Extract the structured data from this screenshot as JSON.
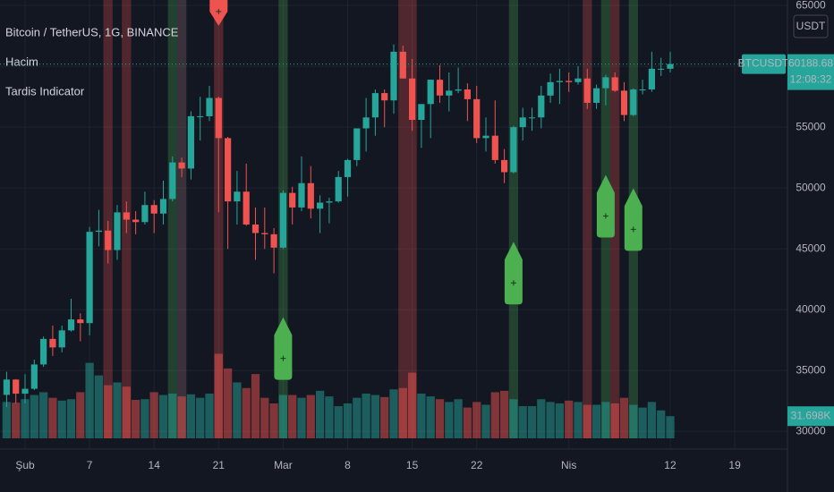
{
  "chart_data": {
    "type": "candlestick",
    "title": "Bitcoin / TetherUS, 1G, BINANCE",
    "indicators": [
      "Hacim",
      "Tardis Indicator"
    ],
    "currency": "USDT",
    "x": [
      -2,
      -1,
      0,
      1,
      2,
      3,
      4,
      5,
      6,
      7,
      8,
      9,
      10,
      11,
      12,
      13,
      14,
      15,
      16,
      17,
      18,
      19,
      20,
      21,
      22,
      23,
      24,
      25,
      26,
      27,
      28,
      29,
      30,
      31,
      32,
      33,
      34,
      35,
      36,
      37,
      38,
      39,
      40,
      41,
      42,
      43,
      44,
      45,
      46,
      47,
      48,
      49,
      50,
      51,
      52,
      53,
      54,
      55,
      56,
      57,
      58,
      59,
      60,
      61,
      62,
      63,
      64,
      65,
      66,
      67,
      68,
      69,
      70
    ],
    "open": [
      33000,
      34260,
      33100,
      33500,
      35500,
      37600,
      36900,
      38300,
      39200,
      38900,
      46400,
      46500,
      44900,
      48000,
      47400,
      47200,
      48600,
      47900,
      49100,
      52100,
      51600,
      55900,
      55900,
      57400,
      54100,
      48900,
      49700,
      47000,
      46300,
      46200,
      45100,
      49600,
      48400,
      50400,
      48300,
      48800,
      48900,
      50900,
      52300,
      54900,
      55800,
      57800,
      57200,
      61200,
      59000,
      55600,
      56900,
      58900,
      57600,
      58000,
      58100,
      57300,
      54100,
      54300,
      52300,
      51300,
      55000,
      55800,
      55800,
      57600,
      58700,
      58800,
      58700,
      59000,
      57000,
      58200,
      59100,
      58000,
      56000,
      58100,
      58100,
      59800,
      59800
    ],
    "high": [
      34900,
      34300,
      34700,
      35900,
      37800,
      38700,
      38700,
      40900,
      39700,
      46800,
      48200,
      47300,
      48600,
      48900,
      48100,
      49700,
      49000,
      50600,
      52600,
      52500,
      56300,
      57500,
      58400,
      57500,
      54200,
      51400,
      52000,
      48400,
      48400,
      46700,
      49800,
      50100,
      52600,
      51800,
      49400,
      49200,
      51400,
      52400,
      54900,
      57400,
      58100,
      58100,
      61800,
      61700,
      60600,
      56900,
      58900,
      60100,
      59500,
      59900,
      58600,
      58400,
      55800,
      57200,
      53200,
      55100,
      56600,
      56600,
      58400,
      59400,
      59800,
      59500,
      60000,
      59800,
      58500,
      59300,
      59500,
      58700,
      58200,
      58900,
      61200,
      60700,
      61200
    ],
    "low": [
      32000,
      32300,
      32300,
      33400,
      35300,
      36200,
      36500,
      38200,
      37400,
      37900,
      45200,
      43800,
      44100,
      46300,
      46200,
      47000,
      46300,
      47000,
      48900,
      50900,
      50700,
      53900,
      55500,
      48000,
      45000,
      47000,
      46900,
      44100,
      45000,
      43000,
      45000,
      47000,
      48100,
      47500,
      46300,
      47100,
      48800,
      49300,
      51800,
      53000,
      54300,
      55000,
      56100,
      59000,
      54700,
      53300,
      54100,
      57000,
      56300,
      57800,
      55500,
      53700,
      53000,
      52000,
      50400,
      51200,
      53900,
      54700,
      54900,
      57000,
      56900,
      57900,
      58500,
      56500,
      56500,
      56800,
      57900,
      55500,
      55900,
      57700,
      57900,
      59200,
      59500
    ],
    "close": [
      34260,
      33100,
      33500,
      35500,
      37600,
      36900,
      38300,
      39200,
      38900,
      46400,
      46500,
      44900,
      48000,
      47400,
      47200,
      48600,
      47900,
      49100,
      52100,
      51600,
      55900,
      55900,
      57400,
      54100,
      48900,
      49700,
      47000,
      46300,
      46200,
      45100,
      49600,
      48400,
      50400,
      48300,
      48800,
      48900,
      50900,
      52300,
      54900,
      55800,
      57800,
      57200,
      61200,
      59000,
      55600,
      56900,
      58900,
      57600,
      58000,
      58100,
      57300,
      54100,
      54300,
      52300,
      51300,
      55000,
      55800,
      55800,
      57600,
      58700,
      58800,
      58700,
      59000,
      57000,
      58200,
      59100,
      58000,
      56000,
      58100,
      58100,
      59800,
      59800,
      60190
    ],
    "volume": [
      52000,
      51000,
      56000,
      62000,
      66000,
      58000,
      54000,
      56000,
      66000,
      108000,
      90000,
      76000,
      80000,
      74000,
      55000,
      56000,
      66000,
      62000,
      64000,
      60000,
      63000,
      58000,
      64000,
      121000,
      100000,
      80000,
      72000,
      92000,
      58000,
      50000,
      62000,
      62000,
      58000,
      62000,
      68000,
      60000,
      46000,
      50000,
      58000,
      64000,
      62000,
      59000,
      70000,
      72000,
      94000,
      64000,
      60000,
      56000,
      52000,
      56000,
      44000,
      52000,
      48000,
      66000,
      68000,
      56000,
      46000,
      46000,
      56000,
      52000,
      50000,
      54000,
      52000,
      48000,
      48000,
      52000,
      50000,
      58000,
      48000,
      44000,
      52000,
      40000,
      31698
    ],
    "up_color": "#26a69a",
    "down_color": "#ef5350",
    "xlim": [
      -2.72,
      82.72
    ],
    "xticks": [
      {
        "value": 0,
        "label": "Şub"
      },
      7,
      14,
      21,
      {
        "value": 28,
        "label": "Mar"
      },
      {
        "value": 35,
        "label": "8"
      },
      {
        "value": 42,
        "label": "15"
      },
      {
        "value": 49,
        "label": "22"
      },
      {
        "value": 59,
        "label": "Nis"
      },
      {
        "value": 70,
        "label": "12"
      },
      {
        "value": 77,
        "label": "19"
      }
    ],
    "ylim": [
      29430,
      65450
    ],
    "yticks": [
      30000,
      35000,
      40000,
      45000,
      50000,
      55000,
      60000,
      65000
    ],
    "vlim": [
      0,
      160000
    ],
    "grid": true,
    "last_price": {
      "symbol": "BTCUSDT",
      "value": 60188.68,
      "countdown": "12:08:32"
    },
    "last_volume": {
      "value": 31698,
      "label": "31.698K"
    },
    "bands": [
      {
        "x": 9,
        "color": "#ef5350"
      },
      {
        "x": 11,
        "color": "#ef5350"
      },
      {
        "x": 16,
        "color": "#4caf50"
      },
      {
        "x": 17,
        "color": "#9e7a7a"
      },
      {
        "x": 21,
        "color": "#ef5350"
      },
      {
        "x": 28,
        "color": "#4caf50"
      },
      {
        "x": 41,
        "color": "#ef5350"
      },
      {
        "x": 42,
        "color": "#ef5350"
      },
      {
        "x": 53,
        "color": "#4caf50"
      },
      {
        "x": 61,
        "color": "#ef5350"
      },
      {
        "x": 63,
        "color": "#4caf50"
      },
      {
        "x": 64,
        "color": "#ef5350"
      },
      {
        "x": 66,
        "color": "#4caf50"
      }
    ],
    "signals": [
      {
        "x": 21,
        "value": 64500,
        "direction": "down",
        "color": "#ef5350"
      },
      {
        "x": 28,
        "value": 36000,
        "direction": "up",
        "color": "#4caf50"
      },
      {
        "x": 53,
        "value": 42200,
        "direction": "up",
        "color": "#4caf50"
      },
      {
        "x": 63,
        "value": 47700,
        "direction": "up",
        "color": "#4caf50"
      },
      {
        "x": 66,
        "value": 46600,
        "direction": "up",
        "color": "#4caf50"
      }
    ]
  }
}
